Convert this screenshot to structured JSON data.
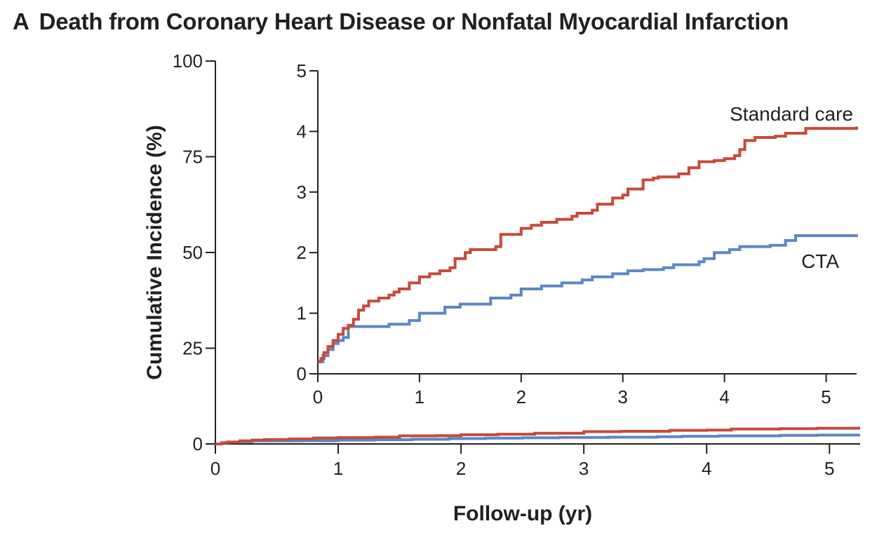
{
  "panel": {
    "letter": "A",
    "title": "Death from Coronary Heart Disease or Nonfatal Myocardial Infarction"
  },
  "chart_data": [
    {
      "type": "line",
      "role": "main",
      "step": true,
      "xlabel": "Follow-up (yr)",
      "ylabel": "Cumulative Incidence (%)",
      "xlim": [
        0,
        5.25
      ],
      "ylim": [
        0,
        100
      ],
      "xticks": [
        "0",
        "1",
        "2",
        "3",
        "4",
        "5"
      ],
      "yticks": [
        "0",
        "25",
        "50",
        "75",
        "100"
      ],
      "grid": false,
      "colors": {
        "Standard care": "#c8493a",
        "CTA": "#5b87c8"
      },
      "series": [
        {
          "name": "Standard care",
          "x": [
            0,
            0.05,
            0.1,
            0.2,
            0.3,
            0.4,
            0.6,
            0.8,
            1.0,
            1.3,
            1.5,
            1.8,
            2.0,
            2.3,
            2.6,
            3.0,
            3.3,
            3.7,
            4.0,
            4.2,
            4.6,
            4.9,
            5.25
          ],
          "y": [
            0,
            0.3,
            0.5,
            0.8,
            1.0,
            1.15,
            1.3,
            1.55,
            1.65,
            1.75,
            2.1,
            2.15,
            2.4,
            2.55,
            2.8,
            3.2,
            3.3,
            3.55,
            3.6,
            3.9,
            4.0,
            4.1,
            4.1
          ]
        },
        {
          "name": "CTA",
          "x": [
            0,
            0.05,
            0.1,
            0.2,
            0.3,
            0.7,
            1.0,
            1.3,
            1.6,
            1.9,
            2.2,
            2.5,
            2.8,
            3.2,
            3.6,
            3.8,
            4.1,
            4.6,
            4.9,
            5.25
          ],
          "y": [
            0,
            0.3,
            0.45,
            0.6,
            0.78,
            0.82,
            1.0,
            1.1,
            1.2,
            1.4,
            1.52,
            1.6,
            1.68,
            1.75,
            1.87,
            2.0,
            2.1,
            2.25,
            2.3,
            2.3
          ]
        }
      ]
    },
    {
      "type": "line",
      "role": "inset",
      "step": true,
      "xlim": [
        0,
        5.3
      ],
      "ylim": [
        0,
        5
      ],
      "xticks": [
        "0",
        "1",
        "2",
        "3",
        "4",
        "5"
      ],
      "yticks": [
        "0",
        "1",
        "2",
        "3",
        "4",
        "5"
      ],
      "grid": false,
      "series_labels": [
        "Standard care",
        "CTA"
      ],
      "series": [
        {
          "name": "Standard care",
          "x": [
            0,
            0.03,
            0.06,
            0.1,
            0.15,
            0.2,
            0.25,
            0.3,
            0.35,
            0.4,
            0.45,
            0.5,
            0.6,
            0.7,
            0.75,
            0.8,
            0.9,
            1.0,
            1.1,
            1.2,
            1.3,
            1.35,
            1.45,
            1.5,
            1.75,
            1.8,
            2.0,
            2.1,
            2.2,
            2.35,
            2.5,
            2.55,
            2.7,
            2.75,
            2.9,
            3.0,
            3.05,
            3.2,
            3.3,
            3.35,
            3.55,
            3.65,
            3.75,
            3.9,
            4.0,
            4.1,
            4.15,
            4.2,
            4.3,
            4.5,
            4.6,
            4.8,
            5.3
          ],
          "y": [
            0.2,
            0.25,
            0.35,
            0.45,
            0.55,
            0.65,
            0.75,
            0.8,
            0.9,
            1.05,
            1.12,
            1.2,
            1.25,
            1.3,
            1.35,
            1.4,
            1.5,
            1.6,
            1.65,
            1.7,
            1.75,
            1.9,
            2.0,
            2.05,
            2.1,
            2.3,
            2.4,
            2.45,
            2.5,
            2.55,
            2.6,
            2.65,
            2.7,
            2.8,
            2.9,
            2.95,
            3.05,
            3.2,
            3.23,
            3.25,
            3.3,
            3.4,
            3.5,
            3.52,
            3.55,
            3.6,
            3.7,
            3.85,
            3.9,
            3.92,
            3.97,
            4.05,
            4.08
          ]
        },
        {
          "name": "CTA",
          "x": [
            0,
            0.05,
            0.1,
            0.15,
            0.2,
            0.25,
            0.3,
            0.7,
            0.9,
            1.0,
            1.25,
            1.4,
            1.7,
            1.9,
            2.0,
            2.2,
            2.4,
            2.6,
            2.7,
            2.9,
            3.05,
            3.2,
            3.4,
            3.5,
            3.75,
            3.8,
            3.9,
            4.05,
            4.15,
            4.45,
            4.6,
            4.7,
            5.3
          ],
          "y": [
            0.2,
            0.3,
            0.4,
            0.5,
            0.55,
            0.6,
            0.78,
            0.82,
            0.88,
            1.0,
            1.1,
            1.15,
            1.25,
            1.3,
            1.4,
            1.45,
            1.5,
            1.55,
            1.6,
            1.65,
            1.7,
            1.72,
            1.75,
            1.8,
            1.85,
            1.9,
            2.0,
            2.05,
            2.1,
            2.12,
            2.2,
            2.28,
            2.3
          ]
        }
      ]
    }
  ]
}
